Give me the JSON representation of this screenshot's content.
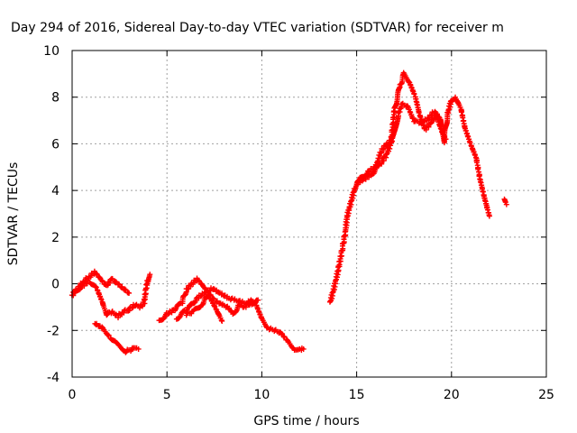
{
  "chart_data": {
    "type": "scatter",
    "title": "Day 294 of 2016, Sidereal Day-to-day VTEC variation (SDTVAR) for receiver m",
    "xlabel": "GPS time / hours",
    "ylabel": "SDTVAR / TECUs",
    "xlim": [
      0,
      25
    ],
    "ylim": [
      -4,
      10
    ],
    "xticks": [
      "0",
      "5",
      "10",
      "15",
      "20",
      "25"
    ],
    "yticks": [
      "-4",
      "-2",
      "0",
      "2",
      "4",
      "6",
      "8",
      "10"
    ],
    "grid": true,
    "marker": "plus",
    "marker_color": "#ff0000",
    "series": [
      {
        "points": [
          [
            0,
            -0.5
          ],
          [
            0.3,
            -0.2
          ],
          [
            0.6,
            0.1
          ],
          [
            0.9,
            0.3
          ],
          [
            1.2,
            0.5
          ],
          [
            1.5,
            0.2
          ],
          [
            1.8,
            -0.1
          ],
          [
            2.1,
            0.2
          ],
          [
            2.4,
            0.0
          ],
          [
            2.7,
            -0.2
          ],
          [
            3.0,
            -0.4
          ]
        ]
      },
      {
        "points": [
          [
            0.1,
            -0.4
          ],
          [
            0.5,
            -0.1
          ],
          [
            0.9,
            0.1
          ],
          [
            1.3,
            -0.2
          ],
          [
            1.6,
            -0.8
          ],
          [
            1.8,
            -1.3
          ],
          [
            2.1,
            -1.2
          ],
          [
            2.4,
            -1.4
          ],
          [
            2.7,
            -1.2
          ],
          [
            3.0,
            -1.1
          ],
          [
            3.3,
            -0.9
          ],
          [
            3.6,
            -1.0
          ],
          [
            3.8,
            -0.8
          ],
          [
            3.9,
            -0.2
          ],
          [
            4.0,
            0.2
          ],
          [
            4.1,
            0.4
          ]
        ]
      },
      {
        "points": [
          [
            1.2,
            -1.7
          ],
          [
            1.6,
            -1.9
          ],
          [
            2.0,
            -2.3
          ],
          [
            2.4,
            -2.6
          ],
          [
            2.8,
            -2.9
          ],
          [
            3.2,
            -2.8
          ],
          [
            3.5,
            -2.8
          ]
        ]
      },
      {
        "points": [
          [
            4.6,
            -1.6
          ],
          [
            5.0,
            -1.3
          ],
          [
            5.4,
            -1.1
          ],
          [
            5.8,
            -0.8
          ],
          [
            6.0,
            -0.3
          ],
          [
            6.3,
            0.0
          ],
          [
            6.6,
            0.2
          ],
          [
            6.9,
            -0.1
          ],
          [
            7.2,
            -0.4
          ],
          [
            7.5,
            -0.7
          ],
          [
            7.9,
            -0.9
          ],
          [
            8.2,
            -1.0
          ],
          [
            8.5,
            -1.3
          ],
          [
            8.8,
            -0.9
          ],
          [
            9.1,
            -1.0
          ],
          [
            9.4,
            -0.7
          ],
          [
            9.7,
            -0.9
          ],
          [
            10.0,
            -1.5
          ],
          [
            10.3,
            -1.9
          ],
          [
            10.7,
            -2.0
          ],
          [
            11.0,
            -2.1
          ],
          [
            11.3,
            -2.4
          ],
          [
            11.7,
            -2.8
          ],
          [
            12.0,
            -2.8
          ],
          [
            12.2,
            -2.8
          ]
        ]
      },
      {
        "points": [
          [
            5.5,
            -1.5
          ],
          [
            5.9,
            -1.2
          ],
          [
            6.2,
            -1.0
          ],
          [
            6.6,
            -0.6
          ],
          [
            7.0,
            -0.4
          ],
          [
            7.4,
            -0.2
          ],
          [
            7.8,
            -0.4
          ],
          [
            8.2,
            -0.6
          ],
          [
            8.6,
            -0.7
          ],
          [
            9.0,
            -0.8
          ],
          [
            9.4,
            -0.9
          ],
          [
            9.8,
            -0.7
          ]
        ]
      },
      {
        "points": [
          [
            6.0,
            -1.3
          ],
          [
            6.4,
            -1.2
          ],
          [
            6.8,
            -0.9
          ],
          [
            7.2,
            -0.5
          ],
          [
            7.6,
            -1.1
          ],
          [
            7.9,
            -1.6
          ]
        ]
      },
      {
        "points": [
          [
            13.6,
            -0.8
          ],
          [
            13.8,
            -0.2
          ],
          [
            14.0,
            0.5
          ],
          [
            14.2,
            1.3
          ],
          [
            14.4,
            2.2
          ],
          [
            14.5,
            2.9
          ],
          [
            14.7,
            3.5
          ],
          [
            14.9,
            4.1
          ],
          [
            15.2,
            4.5
          ],
          [
            15.6,
            4.8
          ],
          [
            16.0,
            5.0
          ],
          [
            16.3,
            5.7
          ],
          [
            16.6,
            6.0
          ],
          [
            16.9,
            6.2
          ],
          [
            17.2,
            7.3
          ],
          [
            17.4,
            7.7
          ],
          [
            17.7,
            7.6
          ],
          [
            18.0,
            7.0
          ],
          [
            18.4,
            6.9
          ],
          [
            18.8,
            7.1
          ],
          [
            19.1,
            7.4
          ],
          [
            19.4,
            7.1
          ],
          [
            19.6,
            6.1
          ],
          [
            19.8,
            7.3
          ],
          [
            20.0,
            7.9
          ],
          [
            20.2,
            8.0
          ],
          [
            20.5,
            7.5
          ],
          [
            20.7,
            6.7
          ],
          [
            21.0,
            6.0
          ],
          [
            21.3,
            5.4
          ],
          [
            21.5,
            4.5
          ],
          [
            21.7,
            3.8
          ],
          [
            21.9,
            3.2
          ],
          [
            22.0,
            2.9
          ]
        ]
      },
      {
        "points": [
          [
            15.0,
            4.3
          ],
          [
            15.4,
            4.5
          ],
          [
            15.8,
            4.7
          ],
          [
            16.2,
            5.1
          ],
          [
            16.5,
            5.4
          ],
          [
            16.8,
            6.0
          ],
          [
            17.0,
            7.5
          ],
          [
            17.3,
            8.5
          ],
          [
            17.5,
            9.0
          ],
          [
            17.8,
            8.6
          ],
          [
            18.1,
            8.0
          ],
          [
            18.3,
            7.3
          ],
          [
            18.6,
            6.6
          ],
          [
            18.9,
            6.9
          ],
          [
            19.2,
            7.2
          ],
          [
            19.5,
            6.5
          ],
          [
            19.7,
            6.2
          ]
        ]
      },
      {
        "points": [
          [
            22.8,
            3.6
          ],
          [
            22.9,
            3.4
          ]
        ]
      }
    ]
  }
}
